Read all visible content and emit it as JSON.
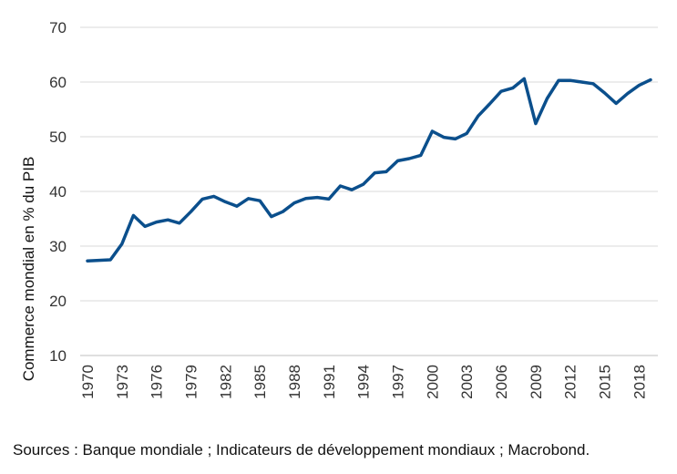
{
  "chart_data": {
    "type": "line",
    "ylabel": "Commerce mondial en % du PIB",
    "xlabel": "",
    "ylim": [
      10,
      70
    ],
    "y_ticks": [
      10,
      20,
      30,
      40,
      50,
      60,
      70
    ],
    "x_ticks": [
      1970,
      1973,
      1976,
      1979,
      1982,
      1985,
      1988,
      1991,
      1994,
      1997,
      2000,
      2003,
      2006,
      2009,
      2012,
      2015,
      2018
    ],
    "xlim": [
      1970,
      2019
    ],
    "grid": "horizontal",
    "line_color": "#0b4f8c",
    "x": [
      1970,
      1971,
      1972,
      1973,
      1974,
      1975,
      1976,
      1977,
      1978,
      1979,
      1980,
      1981,
      1982,
      1983,
      1984,
      1985,
      1986,
      1987,
      1988,
      1989,
      1990,
      1991,
      1992,
      1993,
      1994,
      1995,
      1996,
      1997,
      1998,
      1999,
      2000,
      2001,
      2002,
      2003,
      2004,
      2005,
      2006,
      2007,
      2008,
      2009,
      2010,
      2011,
      2012,
      2013,
      2014,
      2015,
      2016,
      2017,
      2018,
      2019
    ],
    "series": [
      {
        "values": [
          27.3,
          27.4,
          27.5,
          30.4,
          35.6,
          33.6,
          34.4,
          34.8,
          34.2,
          36.3,
          38.6,
          39.1,
          38.1,
          37.3,
          38.7,
          38.3,
          35.4,
          36.3,
          37.9,
          38.7,
          38.9,
          38.6,
          41.0,
          40.3,
          41.3,
          43.4,
          43.6,
          45.6,
          46.0,
          46.6,
          51.0,
          49.9,
          49.6,
          50.6,
          53.8,
          56.0,
          58.3,
          58.9,
          60.6,
          52.4,
          57.0,
          60.3,
          60.3,
          60.0,
          59.7,
          58.0,
          56.1,
          57.9,
          59.4,
          60.4
        ]
      }
    ]
  },
  "source_text": "Sources : Banque mondiale ; Indicateurs de développement mondiaux ; Macrobond."
}
